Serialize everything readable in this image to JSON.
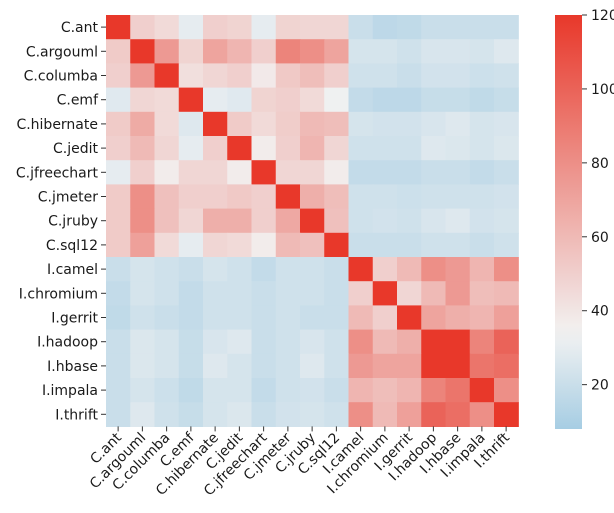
{
  "chart_data": {
    "type": "heatmap",
    "title": "",
    "xlabel": "",
    "ylabel": "",
    "labels": [
      "C.ant",
      "C.argouml",
      "C.columba",
      "C.emf",
      "C.hibernate",
      "C.jedit",
      "C.jfreechart",
      "C.jmeter",
      "C.jruby",
      "C.sql12",
      "I.camel",
      "I.chromium",
      "I.gerrit",
      "I.hadoop",
      "I.hbase",
      "I.impala",
      "I.thrift"
    ],
    "colorbar": {
      "min": 8,
      "max": 120,
      "ticks": [
        20,
        40,
        60,
        80,
        100,
        120
      ],
      "colormap": "blue-white-red diverging",
      "low_color": "#a6cde3",
      "mid_color": "#f2f2f2",
      "high_color": "#e8382a"
    },
    "values": [
      [
        120,
        50,
        45,
        30,
        50,
        48,
        30,
        48,
        47,
        47,
        20,
        16,
        17,
        20,
        20,
        20,
        20
      ],
      [
        52,
        120,
        75,
        48,
        70,
        62,
        50,
        85,
        80,
        70,
        24,
        24,
        22,
        25,
        25,
        24,
        27
      ],
      [
        50,
        75,
        120,
        43,
        47,
        50,
        38,
        53,
        58,
        50,
        22,
        22,
        20,
        23,
        23,
        21,
        22
      ],
      [
        28,
        47,
        45,
        120,
        30,
        28,
        48,
        50,
        45,
        33,
        18,
        16,
        16,
        19,
        19,
        17,
        19
      ],
      [
        52,
        67,
        45,
        27,
        120,
        52,
        45,
        51,
        60,
        58,
        24,
        23,
        23,
        25,
        27,
        24,
        25
      ],
      [
        50,
        60,
        47,
        30,
        50,
        120,
        37,
        50,
        62,
        47,
        22,
        22,
        22,
        27,
        26,
        24,
        26
      ],
      [
        30,
        50,
        37,
        47,
        47,
        37,
        120,
        47,
        47,
        37,
        18,
        18,
        18,
        20,
        20,
        18,
        20
      ],
      [
        52,
        80,
        57,
        50,
        50,
        53,
        50,
        120,
        65,
        58,
        22,
        22,
        21,
        22,
        22,
        22,
        23
      ],
      [
        52,
        80,
        57,
        47,
        65,
        65,
        50,
        68,
        120,
        57,
        22,
        23,
        22,
        25,
        27,
        23,
        24
      ],
      [
        52,
        72,
        45,
        30,
        47,
        45,
        37,
        60,
        57,
        120,
        20,
        20,
        20,
        22,
        22,
        20,
        22
      ],
      [
        20,
        24,
        22,
        20,
        24,
        22,
        18,
        22,
        22,
        20,
        120,
        50,
        60,
        80,
        75,
        62,
        80
      ],
      [
        18,
        24,
        22,
        18,
        22,
        22,
        20,
        22,
        22,
        20,
        50,
        120,
        47,
        60,
        75,
        58,
        60
      ],
      [
        17,
        22,
        20,
        18,
        22,
        22,
        20,
        22,
        20,
        20,
        60,
        50,
        120,
        70,
        65,
        62,
        72
      ],
      [
        20,
        26,
        24,
        19,
        25,
        27,
        20,
        22,
        25,
        22,
        80,
        60,
        65,
        120,
        120,
        85,
        100
      ],
      [
        20,
        26,
        24,
        19,
        27,
        24,
        20,
        22,
        27,
        22,
        75,
        70,
        70,
        120,
        120,
        92,
        95
      ],
      [
        20,
        24,
        21,
        17,
        24,
        24,
        18,
        22,
        23,
        20,
        62,
        58,
        62,
        85,
        92,
        120,
        80
      ],
      [
        20,
        27,
        22,
        19,
        24,
        26,
        20,
        23,
        24,
        22,
        80,
        60,
        72,
        100,
        95,
        80,
        120
      ]
    ]
  }
}
